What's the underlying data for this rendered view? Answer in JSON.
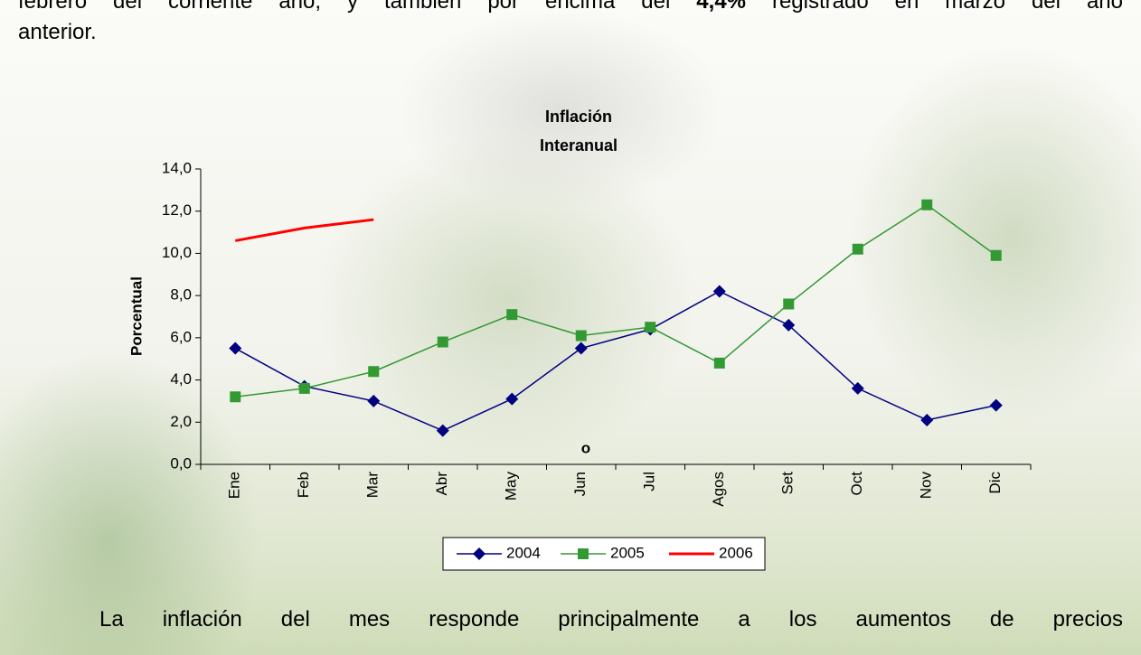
{
  "paragraph_top": [
    "febrero del corriente año, y también por encima del ",
    "4,4%",
    " registrado en marzo del año"
  ],
  "paragraph_top_end": "anterior.",
  "paragraph_bottom": "La inflación del mes responde principalmente a los aumentos de precios",
  "chart_data": {
    "type": "line",
    "title": [
      "Inflación",
      "Interanual"
    ],
    "y_label": "Porcentual",
    "annotation": "o",
    "categories": [
      "Ene",
      "Feb",
      "Mar",
      "Abr",
      "May",
      "Jun",
      "Jul",
      "Agos",
      "Set",
      "Oct",
      "Nov",
      "Dic"
    ],
    "series": [
      {
        "name": "2004",
        "color": "#000080",
        "marker": "diamond",
        "values": [
          5.5,
          3.7,
          3.0,
          1.6,
          3.1,
          5.5,
          6.4,
          8.2,
          6.6,
          3.6,
          2.1,
          2.8
        ]
      },
      {
        "name": "2005",
        "color": "#339933",
        "marker": "square",
        "values": [
          3.2,
          3.6,
          4.4,
          5.8,
          7.1,
          6.1,
          6.5,
          4.8,
          7.6,
          10.2,
          12.3,
          9.9
        ]
      },
      {
        "name": "2006",
        "color": "#ff0000",
        "marker": "none",
        "values": [
          10.6,
          11.2,
          11.6,
          null,
          null,
          null,
          null,
          null,
          null,
          null,
          null,
          null
        ]
      }
    ],
    "ylim": [
      0,
      14
    ],
    "yticks": [
      {
        "value": 0,
        "label": "0,0"
      },
      {
        "value": 2,
        "label": "2,0"
      },
      {
        "value": 4,
        "label": "4,0"
      },
      {
        "value": 6,
        "label": "6,0"
      },
      {
        "value": 8,
        "label": "8,0"
      },
      {
        "value": 10,
        "label": "10,0"
      },
      {
        "value": 12,
        "label": "12,0"
      },
      {
        "value": 14,
        "label": "14,0"
      }
    ],
    "legend": "bottom"
  }
}
